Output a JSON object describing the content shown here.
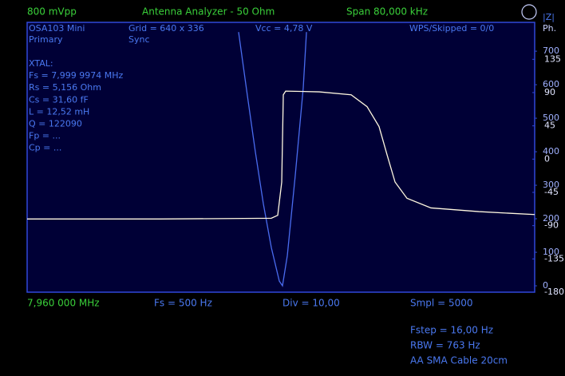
{
  "chart_data": {
    "type": "line",
    "title": "Antenna Analyzer - 50 Ohm",
    "header": [
      "800 mVpp",
      "Span 80,000 kHz"
    ],
    "y_label": "|Z|",
    "y2_label": "Ph.",
    "info": [
      "OSA103 Mini",
      "Grid = 640 x 336",
      "Vcc = 4,78 V",
      "WPS/Skipped = 0/0",
      "Primary",
      "Sync"
    ],
    "xtal": [
      "XTAL:",
      "Fs = 7,999 9974 MHz",
      "Rs = 5,156 Ohm",
      "Cs = 31,60 fF",
      "L = 12,52 mH",
      "Q = 122090",
      "Fp = ...",
      "Cp = ..."
    ],
    "start": "7,960 000 MHz",
    "footer": [
      "Fs = 500 Hz",
      "Div = 10,00",
      "Smpl = 5000"
    ],
    "status": [
      "Fstep = 16,00 Hz",
      "RBW = 763 Hz",
      "AA SMA Cable 20cm"
    ],
    "xlim": [
      7.96,
      8.04
    ],
    "ylim": [
      -19,
      786
    ],
    "yticks": [
      0,
      100,
      200,
      300,
      400,
      500,
      600,
      700
    ],
    "y2lim": [
      -180,
      185
    ],
    "y2ticks": [
      -180,
      -135,
      -90,
      -45,
      0,
      45,
      90,
      135
    ],
    "series": [
      {
        "name": "|Z|",
        "color": "#4a6cf0",
        "x": [
          7.99333,
          7.99472,
          7.99597,
          7.99723,
          7.99849,
          7.99975,
          8.00025,
          8.00101,
          8.00226,
          8.00352,
          8.00403
        ],
        "values": [
          757,
          567,
          400,
          245,
          114,
          14,
          0,
          90,
          329,
          590,
          757
        ]
      },
      {
        "name": "Ph.",
        "color": "#fff8e0",
        "axis": "y2",
        "x": [
          7.96,
          7.98088,
          7.99849,
          7.9995,
          8.00013,
          8.00038,
          8.00075,
          8.00604,
          8.01107,
          8.01358,
          8.01547,
          8.01673,
          8.01799,
          8.01987,
          8.02365,
          8.03119,
          8.04
        ],
        "values": [
          -81,
          -81,
          -80,
          -76,
          -31,
          87,
          92,
          91,
          87,
          71,
          44,
          6,
          -31,
          -53,
          -66,
          -71,
          -75
        ]
      }
    ]
  }
}
